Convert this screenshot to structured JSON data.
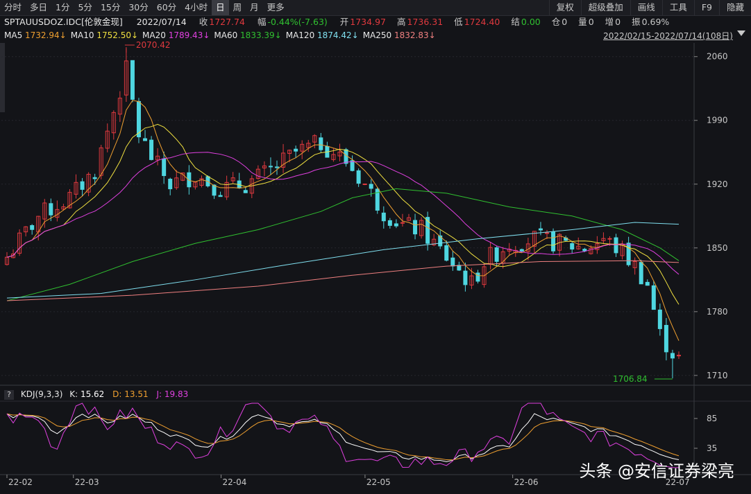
{
  "toolbar": {
    "periods": [
      "分时",
      "多日",
      "1分",
      "5分",
      "15分",
      "30分",
      "60分",
      "4小时",
      "日",
      "周",
      "月",
      "更多"
    ],
    "active_period": "日",
    "right_buttons": [
      "复权",
      "超级叠加",
      "画线",
      "工具",
      "F9",
      "隐藏"
    ]
  },
  "quote": {
    "symbol": "SPTAUUSDOZ.IDC[伦敦金现]",
    "date": "2022/07/14",
    "close_label": "收",
    "close": "1727.74",
    "change_label": "幅",
    "change": "-0.44%(-7.63)",
    "open_label": "开",
    "open": "1734.97",
    "high_label": "高",
    "high": "1736.31",
    "low_label": "低",
    "low": "1724.40",
    "settle_label": "结",
    "settle": "0.00",
    "position_label": "仓",
    "position": "0",
    "volume_label": "量",
    "volume": "0",
    "increase_label": "增",
    "increase": "0",
    "amplitude_label": "振",
    "amplitude": "0.69%"
  },
  "ma": [
    {
      "label": "MA5",
      "value": "1732.94↓",
      "color": "#e8e8e8",
      "value_color": "#f0a030"
    },
    {
      "label": "MA10",
      "value": "1752.50↓",
      "color": "#e8e8e8",
      "value_color": "#f0e040"
    },
    {
      "label": "MA20",
      "value": "1789.43↓",
      "color": "#e8e8e8",
      "value_color": "#e040e0"
    },
    {
      "label": "MA60",
      "value": "1833.39↓",
      "color": "#e8e8e8",
      "value_color": "#30c030"
    },
    {
      "label": "MA120",
      "value": "1874.42↓",
      "color": "#e8e8e8",
      "value_color": "#80e0f0"
    },
    {
      "label": "MA250",
      "value": "1832.83↓",
      "color": "#e8e8e8",
      "value_color": "#f08080"
    }
  ],
  "range": "2022/02/15-2022/07/14(108日)",
  "kdj": {
    "name": "KDJ(9,3,3)",
    "k_label": "K:",
    "k": "15.62",
    "d_label": "D:",
    "d": "13.51",
    "j_label": "J:",
    "j": "19.83"
  },
  "watermark": "头条 @安信证券梁亮",
  "colors": {
    "up": "#e0393e",
    "down": "#4fd6e0",
    "bg": "#131418"
  },
  "chart_data": {
    "type": "candlestick",
    "title": "",
    "ylim": [
      1700,
      2075
    ],
    "yticks": [
      1710,
      1780,
      1850,
      1920,
      1990,
      2060
    ],
    "xtick_labels": [
      "22-02",
      "22-03",
      "22-04",
      "22-05",
      "22-06",
      "22-07"
    ],
    "annotations": [
      {
        "text": "2070.42",
        "value": 2070.42,
        "type": "high"
      },
      {
        "text": "1706.84",
        "value": 1706.84,
        "type": "low"
      }
    ],
    "kdj_yticks": [
      35,
      85
    ]
  }
}
